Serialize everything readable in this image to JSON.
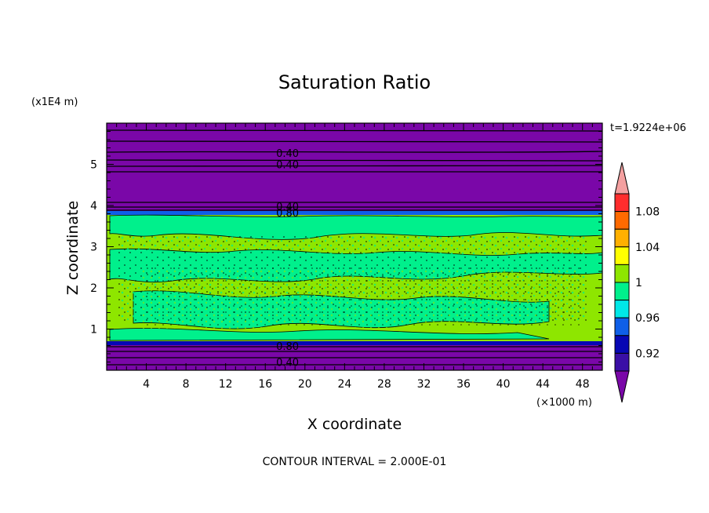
{
  "chart_data": {
    "type": "heatmap",
    "title": "Saturation Ratio",
    "xlabel": "X coordinate",
    "ylabel": "Z coordinate",
    "x_unit": "(×1000 m)",
    "y_unit": "(x1E4 m)",
    "time_label": "t=1.9224e+06",
    "footer": "CONTOUR INTERVAL = 2.000E-01",
    "xlim": [
      0,
      50
    ],
    "ylim": [
      0,
      6
    ],
    "x_ticks": [
      4,
      8,
      12,
      16,
      20,
      24,
      28,
      32,
      36,
      40,
      44,
      48
    ],
    "y_ticks": [
      1,
      2,
      3,
      4,
      5
    ],
    "contour_labels": [
      {
        "text": "0.40",
        "x": 16.5,
        "y": 5.28
      },
      {
        "text": "0.40",
        "x": 16.5,
        "y": 5.0
      },
      {
        "text": "0.40",
        "x": 16.5,
        "y": 3.98
      },
      {
        "text": "0.80",
        "x": 16.5,
        "y": 3.83
      },
      {
        "text": "0.80",
        "x": 16.5,
        "y": 0.59
      },
      {
        "text": "0.40",
        "x": 16.5,
        "y": 0.2
      }
    ],
    "colorbar": {
      "levels": [
        "0.92",
        "0.96",
        "1",
        "1.04",
        "1.08"
      ],
      "colors": [
        "#7a07a8",
        "#3a0fa6",
        "#0707b4",
        "#0f5fe8",
        "#00e8e8",
        "#00f08c",
        "#8ee600",
        "#ffff00",
        "#ffb000",
        "#ff6a00",
        "#ff2d2d",
        "#f4a0a0"
      ]
    }
  }
}
